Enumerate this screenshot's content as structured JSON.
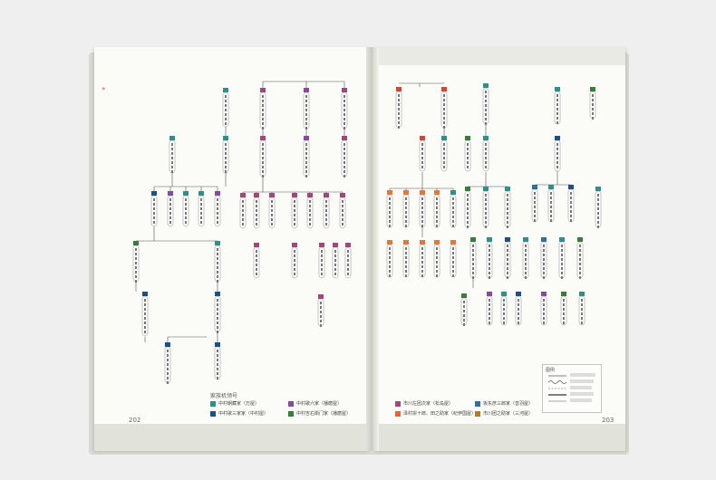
{
  "pages": {
    "left_number": "202",
    "right_number": "203"
  },
  "legend": {
    "title": "家族机领号",
    "items": [
      {
        "label": "中村朝藏家（万屋）",
        "color": "#2f8f8b"
      },
      {
        "label": "中村歌六家（播磨屋）",
        "color": "#8a4a9c"
      },
      {
        "label": "中村歌三家家（中村屋）",
        "color": "#1f4e8c"
      },
      {
        "label": "中村吉右衛门家（播磨屋）",
        "color": "#3a7d3a"
      },
      {
        "label": "市川左团次家（松岛屋）",
        "color": "#a3477a"
      },
      {
        "label": "泽村宗十郎、田之助家（纪伊国屋）",
        "color": "#e06a35"
      },
      {
        "label": "坂东彦三郎家（音羽屋）",
        "color": "#2e6fa8"
      },
      {
        "label": "市川团之助家（三河屋）",
        "color": "#b57a2a"
      }
    ]
  },
  "key_box": {
    "title": "图例"
  },
  "colors": {
    "teal": "#2f8f8b",
    "purple": "#8a4a9c",
    "navy": "#1f4e8c",
    "green": "#3a7d3a",
    "magenta": "#a3477a",
    "red": "#d9462f",
    "orange": "#e8763a",
    "blue": "#2e6fa8"
  }
}
